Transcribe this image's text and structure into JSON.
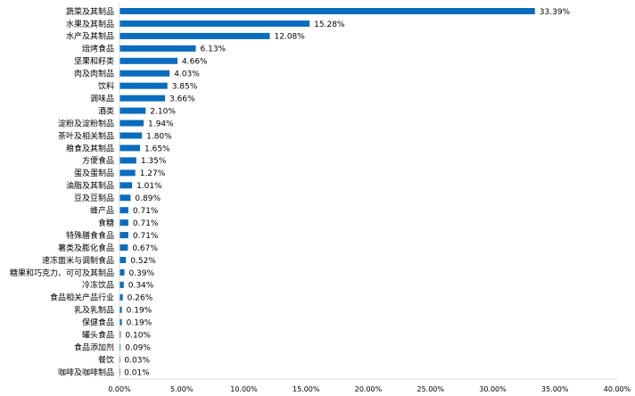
{
  "chart_data": {
    "type": "bar",
    "orientation": "horizontal",
    "categories": [
      "蔬菜及其制品",
      "水果及其制品",
      "水产及其制品",
      "焙烤食品",
      "坚果和籽类",
      "肉及肉制品",
      "饮料",
      "调味品",
      "酒类",
      "淀粉及淀粉制品",
      "茶叶及相关制品",
      "粮食及其制品",
      "方便食品",
      "蛋及蛋制品",
      "油脂及其制品",
      "豆及豆制品",
      "蜂产品",
      "食糖",
      "特殊膳食食品",
      "薯类及膨化食品",
      "速冻面米与调制食品",
      "糖果和巧克力、可可及其制品",
      "冷冻饮品",
      "食品相关产品行业",
      "乳及乳制品",
      "保健食品",
      "罐头食品",
      "食品添加剂",
      "餐饮",
      "咖啡及咖啡制品"
    ],
    "values": [
      33.39,
      15.28,
      12.08,
      6.13,
      4.66,
      4.03,
      3.85,
      3.66,
      2.1,
      1.94,
      1.8,
      1.65,
      1.35,
      1.27,
      1.01,
      0.89,
      0.71,
      0.71,
      0.71,
      0.67,
      0.52,
      0.39,
      0.34,
      0.26,
      0.19,
      0.19,
      0.1,
      0.09,
      0.03,
      0.01
    ],
    "value_labels": [
      "33.39%",
      "15.28%",
      "12.08%",
      "6.13%",
      "4.66%",
      "4.03%",
      "3.85%",
      "3.66%",
      "2.10%",
      "1.94%",
      "1.80%",
      "1.65%",
      "1.35%",
      "1.27%",
      "1.01%",
      "0.89%",
      "0.71%",
      "0.71%",
      "0.71%",
      "0.67%",
      "0.52%",
      "0.39%",
      "0.34%",
      "0.26%",
      "0.19%",
      "0.19%",
      "0.10%",
      "0.09%",
      "0.03%",
      "0.01%"
    ],
    "xlim": [
      0,
      40
    ],
    "xticks": [
      "0.00%",
      "5.00%",
      "10.00%",
      "15.00%",
      "20.00%",
      "25.00%",
      "30.00%",
      "35.00%",
      "40.00%"
    ],
    "title": "",
    "xlabel": "",
    "ylabel": "",
    "grid": false,
    "bar_color": "#0a6cbf"
  }
}
